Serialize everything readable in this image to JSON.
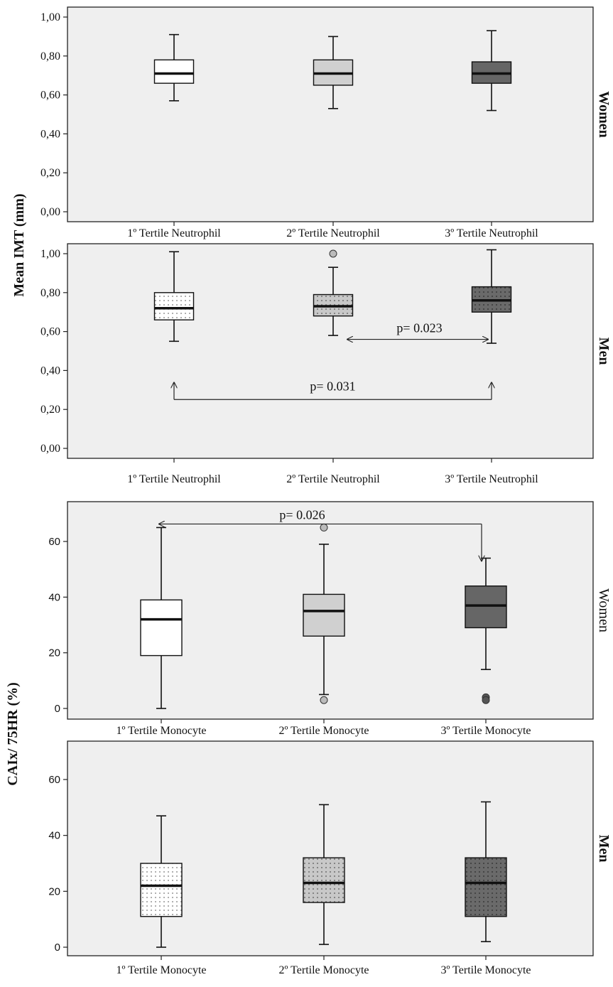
{
  "chart_data": [
    {
      "type": "boxplot",
      "panel": "Women",
      "ylabel": "Mean IMT (mm)",
      "ylim": [
        0,
        1.0
      ],
      "yticks": [
        "0,00",
        "0,20",
        "0,40",
        "0,60",
        "0,80",
        "1,00"
      ],
      "categories": [
        "1º Tertile Neutrophil",
        "2º Tertile Neutrophil",
        "3º Tertile Neutrophil"
      ],
      "boxes": [
        {
          "whisker_low": 0.57,
          "q1": 0.66,
          "median": 0.71,
          "q3": 0.78,
          "whisker_high": 0.91,
          "fill": "#ffffff",
          "pattern": "none",
          "outliers": []
        },
        {
          "whisker_low": 0.53,
          "q1": 0.65,
          "median": 0.71,
          "q3": 0.78,
          "whisker_high": 0.9,
          "fill": "#d0d0d0",
          "pattern": "none",
          "outliers": []
        },
        {
          "whisker_low": 0.52,
          "q1": 0.66,
          "median": 0.71,
          "q3": 0.77,
          "whisker_high": 0.93,
          "fill": "#666666",
          "pattern": "none",
          "outliers": []
        }
      ],
      "annotations": []
    },
    {
      "type": "boxplot",
      "panel": "Men",
      "ylim": [
        0,
        1.0
      ],
      "yticks": [
        "0,00",
        "0,20",
        "0,40",
        "0,60",
        "0,80",
        "1,00"
      ],
      "categories": [
        "1º Tertile Neutrophil",
        "2º Tertile Neutrophil",
        "3º Tertile Neutrophil"
      ],
      "boxes": [
        {
          "whisker_low": 0.55,
          "q1": 0.66,
          "median": 0.72,
          "q3": 0.8,
          "whisker_high": 1.01,
          "fill": "#ffffff",
          "pattern": "dots",
          "outliers": []
        },
        {
          "whisker_low": 0.58,
          "q1": 0.68,
          "median": 0.73,
          "q3": 0.79,
          "whisker_high": 0.93,
          "fill": "#d0d0d0",
          "pattern": "dots",
          "outliers": [
            1.0
          ]
        },
        {
          "whisker_low": 0.54,
          "q1": 0.7,
          "median": 0.76,
          "q3": 0.83,
          "whisker_high": 1.02,
          "fill": "#777777",
          "pattern": "dots",
          "outliers": []
        }
      ],
      "annotations": [
        {
          "text": "p= 0.023",
          "from": 1,
          "to": 2,
          "y": 0.56
        },
        {
          "text": "p= 0.031",
          "from": 0,
          "to": 2,
          "y": 0.28
        }
      ]
    },
    {
      "type": "boxplot",
      "panel": "Women",
      "ylabel": "CAIx/ 75HR (%)",
      "ylim": [
        0,
        70
      ],
      "yticks": [
        "0",
        "20",
        "40",
        "60"
      ],
      "categories": [
        "1º Tertile Monocyte",
        "2º Tertile Monocyte",
        "3º Tertile Monocyte"
      ],
      "boxes": [
        {
          "whisker_low": 0,
          "q1": 19,
          "median": 32,
          "q3": 39,
          "whisker_high": 65,
          "fill": "#ffffff",
          "pattern": "none",
          "outliers": []
        },
        {
          "whisker_low": 5,
          "q1": 26,
          "median": 35,
          "q3": 41,
          "whisker_high": 59,
          "fill": "#d0d0d0",
          "pattern": "none",
          "outliers": [
            65,
            3
          ]
        },
        {
          "whisker_low": 14,
          "q1": 29,
          "median": 37,
          "q3": 44,
          "whisker_high": 54,
          "fill": "#666666",
          "pattern": "none",
          "outliers": [
            4,
            3
          ]
        }
      ],
      "annotations": [
        {
          "text": "p= 0.026",
          "from": 0,
          "to": 2,
          "y": 65
        }
      ]
    },
    {
      "type": "boxplot",
      "panel": "Men",
      "ylim": [
        0,
        70
      ],
      "yticks": [
        "0",
        "20",
        "40",
        "60"
      ],
      "categories": [
        "1º Tertile Monocyte",
        "2º Tertile Monocyte",
        "3º Tertile Monocyte"
      ],
      "boxes": [
        {
          "whisker_low": 0,
          "q1": 11,
          "median": 22,
          "q3": 30,
          "whisker_high": 47,
          "fill": "#ffffff",
          "pattern": "dots",
          "outliers": []
        },
        {
          "whisker_low": 1,
          "q1": 16,
          "median": 23,
          "q3": 32,
          "whisker_high": 51,
          "fill": "#d0d0d0",
          "pattern": "dots",
          "outliers": []
        },
        {
          "whisker_low": 2,
          "q1": 11,
          "median": 23,
          "q3": 32,
          "whisker_high": 52,
          "fill": "#666666",
          "pattern": "dots",
          "outliers": []
        }
      ],
      "annotations": []
    }
  ]
}
